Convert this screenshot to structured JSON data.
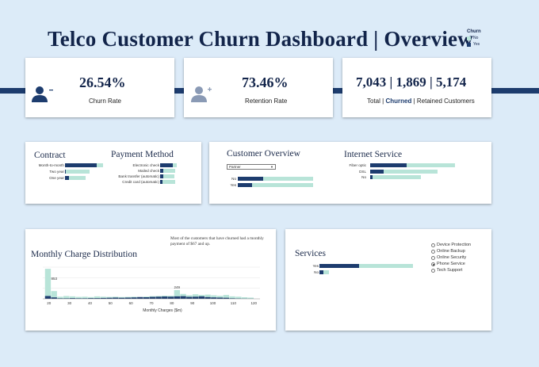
{
  "title": "Telco Customer Churn Dashboard | Overview",
  "legend": {
    "title": "Churn",
    "items": [
      {
        "label": "No",
        "color": "#b8e4d8"
      },
      {
        "label": "Yes",
        "color": "#1d3c6e"
      }
    ]
  },
  "kpis": {
    "churn": {
      "value": "26.54%",
      "label": "Churn Rate",
      "icon": "user-minus-icon"
    },
    "retention": {
      "value": "73.46%",
      "label": "Retention Rate",
      "icon": "user-plus-icon"
    },
    "totals": {
      "value": "7,043 | 1,869 | 5,174",
      "label_total": "Total |",
      "label_churned": "Churned",
      "label_retained": "| Retained Customers"
    }
  },
  "contract": {
    "title": "Contract",
    "rows": [
      {
        "label": "Month-to-month",
        "yes": 0.55,
        "no": 0.66
      },
      {
        "label": "Two year",
        "yes": 0.02,
        "no": 0.43
      },
      {
        "label": "One year",
        "yes": 0.07,
        "no": 0.36
      }
    ]
  },
  "payment": {
    "title": "Payment Method",
    "rows": [
      {
        "label": "Electronic check",
        "yes": 0.4,
        "no": 0.53
      },
      {
        "label": "Mailed check",
        "yes": 0.1,
        "no": 0.48
      },
      {
        "label": "Bank transfer (automatic)",
        "yes": 0.09,
        "no": 0.45
      },
      {
        "label": "Credit card (automatic)",
        "yes": 0.08,
        "no": 0.47
      }
    ]
  },
  "customer_overview": {
    "title": "Customer Overview",
    "select_value": "Partner",
    "rows": [
      {
        "label": "No",
        "yes": 0.21,
        "no": 0.63
      },
      {
        "label": "Yes",
        "yes": 0.12,
        "no": 0.63
      }
    ]
  },
  "internet": {
    "title": "Internet Service",
    "rows": [
      {
        "label": "Fiber optic",
        "yes": 0.4,
        "no": 0.93
      },
      {
        "label": "DSL",
        "yes": 0.15,
        "no": 0.74
      },
      {
        "label": "No",
        "yes": 0.03,
        "no": 0.56
      }
    ]
  },
  "monthly": {
    "title": "Monthly Charge Distribution",
    "annotation": "Most of the customers that have churned had a monthly payment of $67 and up.",
    "xlabel": "Monthly Charges ($m)",
    "peak_labels": [
      "853",
      "249"
    ]
  },
  "services": {
    "title": "Services",
    "options": [
      {
        "label": "Device Protection",
        "selected": false
      },
      {
        "label": "Online Backup",
        "selected": false
      },
      {
        "label": "Online Security",
        "selected": false
      },
      {
        "label": "Phone Service",
        "selected": true
      },
      {
        "label": "Tech Support",
        "selected": false
      }
    ],
    "rows": [
      {
        "label": "Yes",
        "yes": 0.42,
        "no": 1.0
      },
      {
        "label": "No",
        "yes": 0.04,
        "no": 0.1
      }
    ]
  },
  "chart_data": {
    "type": "bar",
    "title": "Monthly Charge Distribution",
    "xlabel": "Monthly Charges ($m)",
    "ylabel": "",
    "xlim": [
      17,
      123
    ],
    "x_ticks": [
      20,
      30,
      40,
      50,
      60,
      70,
      80,
      90,
      100,
      110,
      120
    ],
    "bin_start": 18,
    "bin_width": 3,
    "series": [
      {
        "name": "No",
        "values": [
          853,
          220,
          60,
          80,
          70,
          55,
          60,
          50,
          70,
          60,
          55,
          60,
          50,
          55,
          60,
          50,
          65,
          75,
          80,
          90,
          85,
          249,
          140,
          100,
          130,
          110,
          120,
          100,
          85,
          110,
          70,
          60,
          45,
          35
        ]
      },
      {
        "name": "Yes",
        "values": [
          80,
          40,
          15,
          15,
          20,
          15,
          15,
          20,
          20,
          25,
          30,
          35,
          30,
          35,
          40,
          50,
          45,
          55,
          60,
          65,
          60,
          70,
          75,
          55,
          60,
          70,
          50,
          40,
          35,
          30,
          15,
          10,
          5,
          3
        ]
      }
    ],
    "data_labels": [
      {
        "x": 20,
        "value": 853
      },
      {
        "x": 80,
        "value": 249
      }
    ]
  }
}
